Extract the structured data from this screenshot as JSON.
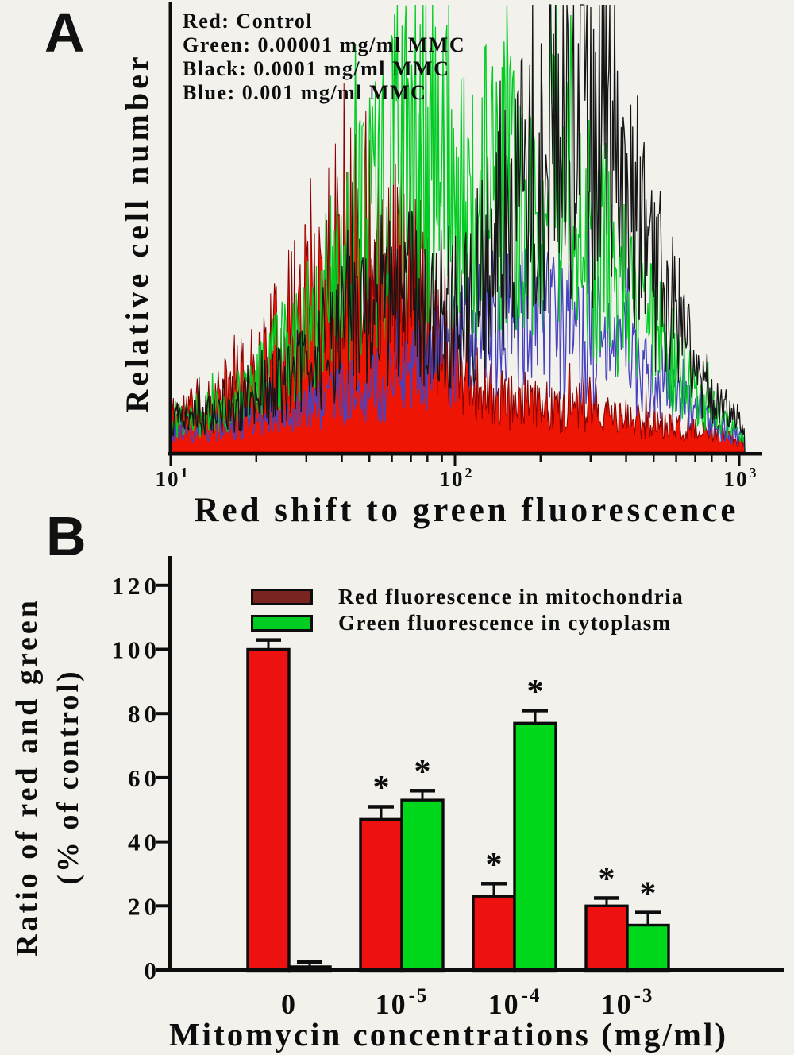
{
  "colors": {
    "axis": "#0d0d0d",
    "bar_red": "#ee1111",
    "bar_green": "#00d81c",
    "legend_red_swatch": "#7a2420",
    "legend_green_swatch": "#00cc22",
    "trace_red": "#ee1505",
    "trace_red_stroke": "#8b0000",
    "trace_green": "#00cc22",
    "trace_black": "#151515",
    "trace_blue": "#4743c0"
  },
  "panel_a": {
    "label": "A",
    "y_axis_label": "Relative cell number",
    "x_axis_label": "Red shift to green fluorescence",
    "legend": [
      {
        "text": "Red: Control"
      },
      {
        "text": "Green: 0.00001 mg/ml MMC"
      },
      {
        "text": "Black: 0.0001 mg/ml MMC"
      },
      {
        "text": "Blue: 0.001 mg/ml MMC"
      }
    ],
    "x_ticks_display": [
      {
        "base": "10",
        "exp": "1"
      },
      {
        "base": "10",
        "exp": "2"
      },
      {
        "base": "10",
        "exp": "3"
      }
    ]
  },
  "panel_b": {
    "label": "B",
    "y_axis_label_line1": "Ratio of red and green",
    "y_axis_label_line2": "(% of control)",
    "x_axis_label": "Mitomycin concentrations (mg/ml)",
    "legend": [
      {
        "text": "Red fluorescence in mitochondria",
        "swatch_color": "#7a2420"
      },
      {
        "text": "Green fluorescence in cytoplasm",
        "swatch_color": "#00cc22"
      }
    ],
    "categories_display": [
      {
        "t": "0"
      },
      {
        "t": "10",
        "sup": "-5"
      },
      {
        "t": "10",
        "sup": "-4"
      },
      {
        "t": "10",
        "sup": "-3"
      }
    ]
  },
  "chart_data": [
    {
      "type": "line",
      "subtype": "flow-cytometry-histogram-overlay",
      "title": "",
      "xlabel": "Red shift to green fluorescence",
      "ylabel": "Relative cell number",
      "x_scale": "log10",
      "xlim": [
        10,
        1100
      ],
      "x_ticks": [
        10,
        100,
        1000
      ],
      "grid": false,
      "legend_position": "top-left",
      "series": [
        {
          "id": "control",
          "name": "Red: Control",
          "color": "#ee1505",
          "stroke": "#8b0000",
          "style": "filled",
          "seed": 11,
          "approx_mode_x": 55,
          "profile": [
            [
              1.0,
              0.1
            ],
            [
              1.15,
              0.14
            ],
            [
              1.3,
              0.22
            ],
            [
              1.45,
              0.38
            ],
            [
              1.55,
              0.52
            ],
            [
              1.65,
              0.6
            ],
            [
              1.75,
              0.58
            ],
            [
              1.85,
              0.48
            ],
            [
              1.95,
              0.34
            ],
            [
              2.05,
              0.2
            ],
            [
              2.15,
              0.14
            ],
            [
              2.3,
              0.12
            ],
            [
              2.45,
              0.11
            ],
            [
              2.6,
              0.09
            ],
            [
              2.75,
              0.07
            ],
            [
              2.9,
              0.05
            ],
            [
              3.0,
              0.03
            ]
          ]
        },
        {
          "id": "mmc-0.001",
          "name": "Blue: 0.001 mg/ml MMC",
          "color": "#4743c0",
          "style": "line",
          "seed": 77,
          "approx_mode_x": 180,
          "profile": [
            [
              1.0,
              0.05
            ],
            [
              1.2,
              0.07
            ],
            [
              1.4,
              0.1
            ],
            [
              1.6,
              0.15
            ],
            [
              1.8,
              0.2
            ],
            [
              2.0,
              0.27
            ],
            [
              2.1,
              0.33
            ],
            [
              2.2,
              0.37
            ],
            [
              2.3,
              0.35
            ],
            [
              2.4,
              0.33
            ],
            [
              2.5,
              0.3
            ],
            [
              2.6,
              0.25
            ],
            [
              2.7,
              0.19
            ],
            [
              2.8,
              0.13
            ],
            [
              2.9,
              0.08
            ],
            [
              3.0,
              0.04
            ]
          ]
        },
        {
          "id": "mmc-0.00001",
          "name": "Green: 0.00001 mg/ml MMC",
          "color": "#00cc22",
          "style": "line",
          "seed": 23,
          "approx_modes_x": [
            90,
            230
          ],
          "profile": [
            [
              1.0,
              0.07
            ],
            [
              1.15,
              0.1
            ],
            [
              1.3,
              0.18
            ],
            [
              1.45,
              0.32
            ],
            [
              1.6,
              0.48
            ],
            [
              1.75,
              0.68
            ],
            [
              1.85,
              0.85
            ],
            [
              1.95,
              0.8
            ],
            [
              2.05,
              0.66
            ],
            [
              2.15,
              0.72
            ],
            [
              2.25,
              0.64
            ],
            [
              2.35,
              0.68
            ],
            [
              2.45,
              0.6
            ],
            [
              2.55,
              0.5
            ],
            [
              2.65,
              0.38
            ],
            [
              2.75,
              0.26
            ],
            [
              2.85,
              0.15
            ],
            [
              2.95,
              0.08
            ],
            [
              3.0,
              0.05
            ]
          ]
        },
        {
          "id": "mmc-0.0001",
          "name": "Black: 0.0001 mg/ml MMC",
          "color": "#151515",
          "style": "line",
          "seed": 5,
          "approx_mode_x": 270,
          "profile": [
            [
              1.0,
              0.08
            ],
            [
              1.15,
              0.1
            ],
            [
              1.3,
              0.14
            ],
            [
              1.45,
              0.22
            ],
            [
              1.6,
              0.32
            ],
            [
              1.75,
              0.42
            ],
            [
              1.9,
              0.4
            ],
            [
              2.0,
              0.38
            ],
            [
              2.1,
              0.48
            ],
            [
              2.2,
              0.62
            ],
            [
              2.3,
              0.8
            ],
            [
              2.4,
              0.96
            ],
            [
              2.5,
              0.9
            ],
            [
              2.6,
              0.72
            ],
            [
              2.7,
              0.5
            ],
            [
              2.8,
              0.32
            ],
            [
              2.9,
              0.16
            ],
            [
              3.0,
              0.07
            ]
          ]
        }
      ]
    },
    {
      "type": "bar",
      "title": "",
      "categories": [
        "0",
        "10^-5",
        "10^-4",
        "10^-3"
      ],
      "series": [
        {
          "name": "Red fluorescence in mitochondria",
          "color": "#ee1111",
          "values": [
            100,
            47,
            23,
            20
          ],
          "errors": [
            3,
            4,
            4,
            2.5
          ],
          "significant": [
            false,
            true,
            true,
            true
          ]
        },
        {
          "name": "Green fluorescence in cytoplasm",
          "color": "#00d81c",
          "values": [
            1,
            53,
            77,
            14
          ],
          "errors": [
            1.5,
            3,
            4,
            4
          ],
          "significant": [
            false,
            true,
            true,
            true
          ]
        }
      ],
      "xlabel": "Mitomycin concentrations (mg/ml)",
      "ylabel": "Ratio of red and green (% of control)",
      "ylim": [
        0,
        120
      ],
      "yticks": [
        0,
        20,
        40,
        60,
        80,
        100,
        120
      ],
      "grid": false,
      "legend_position": "top-inside",
      "significance_marker": "*"
    }
  ]
}
